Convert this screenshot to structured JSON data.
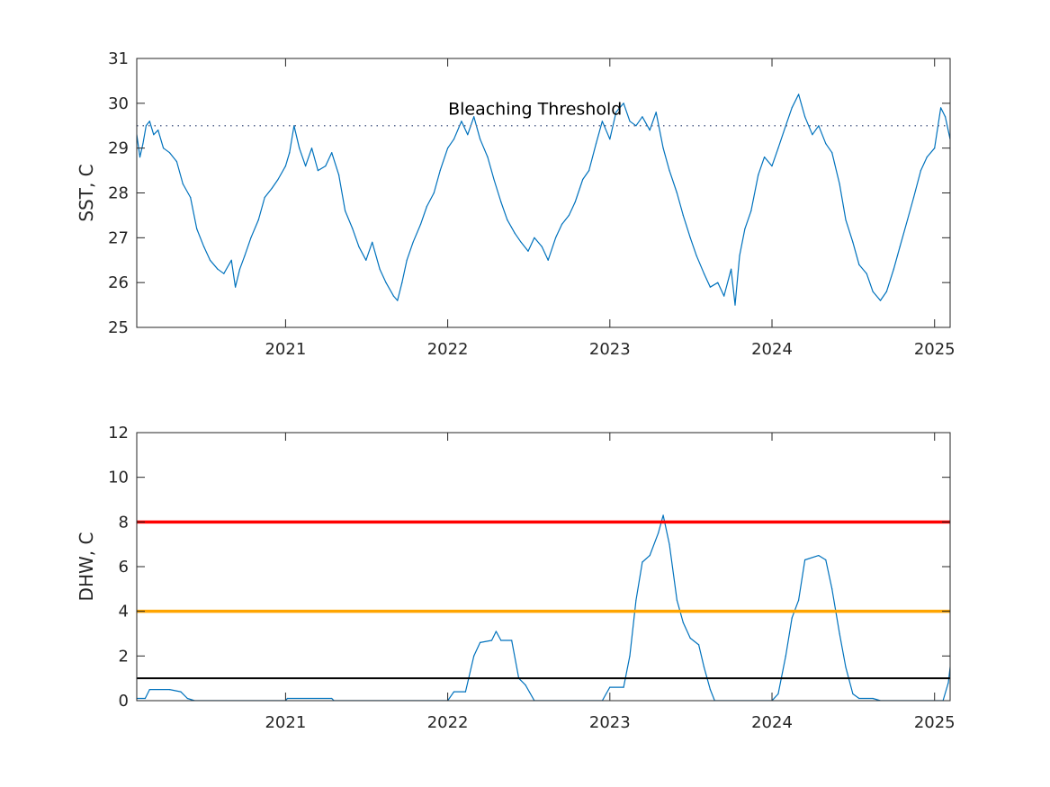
{
  "chart_data": [
    {
      "type": "line",
      "title": "",
      "xlabel": "",
      "ylabel": "SST, C",
      "xlim": [
        "2020-02-01",
        "2025-02-05"
      ],
      "ylim": [
        25,
        31
      ],
      "x_ticks": [
        "2021",
        "2022",
        "2023",
        "2024",
        "2025"
      ],
      "y_ticks": [
        "25",
        "26",
        "27",
        "28",
        "29",
        "30",
        "31"
      ],
      "grid": false,
      "series": [
        {
          "color": "#0072bd",
          "points": [
            [
              "2020-02-01",
              29.3
            ],
            [
              "2020-02-08",
              28.8
            ],
            [
              "2020-02-15",
              29.1
            ],
            [
              "2020-02-22",
              29.5
            ],
            [
              "2020-03-01",
              29.6
            ],
            [
              "2020-03-10",
              29.3
            ],
            [
              "2020-03-20",
              29.4
            ],
            [
              "2020-04-01",
              29.0
            ],
            [
              "2020-04-15",
              28.9
            ],
            [
              "2020-05-01",
              28.7
            ],
            [
              "2020-05-15",
              28.2
            ],
            [
              "2020-06-01",
              27.9
            ],
            [
              "2020-06-15",
              27.2
            ],
            [
              "2020-07-01",
              26.8
            ],
            [
              "2020-07-15",
              26.5
            ],
            [
              "2020-08-01",
              26.3
            ],
            [
              "2020-08-15",
              26.2
            ],
            [
              "2020-09-01",
              26.5
            ],
            [
              "2020-09-10",
              25.9
            ],
            [
              "2020-09-20",
              26.3
            ],
            [
              "2020-10-01",
              26.6
            ],
            [
              "2020-10-15",
              27.0
            ],
            [
              "2020-11-01",
              27.4
            ],
            [
              "2020-11-15",
              27.9
            ],
            [
              "2020-12-01",
              28.1
            ],
            [
              "2020-12-15",
              28.3
            ],
            [
              "2021-01-01",
              28.6
            ],
            [
              "2021-01-10",
              28.9
            ],
            [
              "2021-01-20",
              29.5
            ],
            [
              "2021-02-01",
              29.0
            ],
            [
              "2021-02-15",
              28.6
            ],
            [
              "2021-03-01",
              29.0
            ],
            [
              "2021-03-15",
              28.5
            ],
            [
              "2021-04-01",
              28.6
            ],
            [
              "2021-04-15",
              28.9
            ],
            [
              "2021-05-01",
              28.4
            ],
            [
              "2021-05-15",
              27.6
            ],
            [
              "2021-06-01",
              27.2
            ],
            [
              "2021-06-15",
              26.8
            ],
            [
              "2021-07-01",
              26.5
            ],
            [
              "2021-07-15",
              26.9
            ],
            [
              "2021-08-01",
              26.3
            ],
            [
              "2021-08-15",
              26.0
            ],
            [
              "2021-09-01",
              25.7
            ],
            [
              "2021-09-10",
              25.6
            ],
            [
              "2021-09-20",
              26.0
            ],
            [
              "2021-10-01",
              26.5
            ],
            [
              "2021-10-15",
              26.9
            ],
            [
              "2021-11-01",
              27.3
            ],
            [
              "2021-11-15",
              27.7
            ],
            [
              "2021-12-01",
              28.0
            ],
            [
              "2021-12-15",
              28.5
            ],
            [
              "2022-01-01",
              29.0
            ],
            [
              "2022-01-15",
              29.2
            ],
            [
              "2022-02-01",
              29.6
            ],
            [
              "2022-02-15",
              29.3
            ],
            [
              "2022-03-01",
              29.7
            ],
            [
              "2022-03-15",
              29.2
            ],
            [
              "2022-04-01",
              28.8
            ],
            [
              "2022-04-15",
              28.3
            ],
            [
              "2022-05-01",
              27.8
            ],
            [
              "2022-05-15",
              27.4
            ],
            [
              "2022-06-01",
              27.1
            ],
            [
              "2022-06-15",
              26.9
            ],
            [
              "2022-07-01",
              26.7
            ],
            [
              "2022-07-15",
              27.0
            ],
            [
              "2022-08-01",
              26.8
            ],
            [
              "2022-08-15",
              26.5
            ],
            [
              "2022-09-01",
              27.0
            ],
            [
              "2022-09-15",
              27.3
            ],
            [
              "2022-10-01",
              27.5
            ],
            [
              "2022-10-15",
              27.8
            ],
            [
              "2022-11-01",
              28.3
            ],
            [
              "2022-11-15",
              28.5
            ],
            [
              "2022-12-01",
              29.1
            ],
            [
              "2022-12-15",
              29.6
            ],
            [
              "2023-01-01",
              29.2
            ],
            [
              "2023-01-15",
              29.8
            ],
            [
              "2023-02-01",
              30.0
            ],
            [
              "2023-02-15",
              29.6
            ],
            [
              "2023-03-01",
              29.5
            ],
            [
              "2023-03-15",
              29.7
            ],
            [
              "2023-04-01",
              29.4
            ],
            [
              "2023-04-15",
              29.8
            ],
            [
              "2023-05-01",
              29.0
            ],
            [
              "2023-05-15",
              28.5
            ],
            [
              "2023-06-01",
              28.0
            ],
            [
              "2023-06-15",
              27.5
            ],
            [
              "2023-07-01",
              27.0
            ],
            [
              "2023-07-15",
              26.6
            ],
            [
              "2023-08-01",
              26.2
            ],
            [
              "2023-08-15",
              25.9
            ],
            [
              "2023-09-01",
              26.0
            ],
            [
              "2023-09-15",
              25.7
            ],
            [
              "2023-10-01",
              26.3
            ],
            [
              "2023-10-10",
              25.5
            ],
            [
              "2023-10-20",
              26.6
            ],
            [
              "2023-11-01",
              27.2
            ],
            [
              "2023-11-15",
              27.6
            ],
            [
              "2023-12-01",
              28.4
            ],
            [
              "2023-12-15",
              28.8
            ],
            [
              "2024-01-01",
              28.6
            ],
            [
              "2024-01-15",
              29.0
            ],
            [
              "2024-02-01",
              29.5
            ],
            [
              "2024-02-15",
              29.9
            ],
            [
              "2024-03-01",
              30.2
            ],
            [
              "2024-03-15",
              29.7
            ],
            [
              "2024-04-01",
              29.3
            ],
            [
              "2024-04-15",
              29.5
            ],
            [
              "2024-05-01",
              29.1
            ],
            [
              "2024-05-15",
              28.9
            ],
            [
              "2024-06-01",
              28.2
            ],
            [
              "2024-06-15",
              27.4
            ],
            [
              "2024-07-01",
              26.9
            ],
            [
              "2024-07-15",
              26.4
            ],
            [
              "2024-08-01",
              26.2
            ],
            [
              "2024-08-15",
              25.8
            ],
            [
              "2024-09-01",
              25.6
            ],
            [
              "2024-09-15",
              25.8
            ],
            [
              "2024-10-01",
              26.3
            ],
            [
              "2024-10-15",
              26.8
            ],
            [
              "2024-11-01",
              27.4
            ],
            [
              "2024-11-15",
              27.9
            ],
            [
              "2024-12-01",
              28.5
            ],
            [
              "2024-12-15",
              28.8
            ],
            [
              "2025-01-01",
              29.0
            ],
            [
              "2025-01-15",
              29.9
            ],
            [
              "2025-01-25",
              29.7
            ],
            [
              "2025-02-05",
              29.2
            ]
          ]
        }
      ],
      "reference_lines": [
        {
          "y": 29.5,
          "style": "dotted",
          "color": "#5a6a90"
        }
      ],
      "annotations": [
        {
          "text": "Bleaching Threshold",
          "x": "2022-01-02",
          "y": 29.75
        }
      ]
    },
    {
      "type": "area",
      "title": "",
      "xlabel": "",
      "ylabel": "DHW, C",
      "xlim": [
        "2020-02-01",
        "2025-02-05"
      ],
      "ylim": [
        0,
        12
      ],
      "x_ticks": [
        "2021",
        "2022",
        "2023",
        "2024",
        "2025"
      ],
      "y_ticks": [
        "0",
        "2",
        "4",
        "6",
        "8",
        "10",
        "12"
      ],
      "grid": false,
      "series": [
        {
          "color": "#0072bd",
          "points": [
            [
              "2020-02-01",
              0.1
            ],
            [
              "2020-02-20",
              0.1
            ],
            [
              "2020-03-01",
              0.5
            ],
            [
              "2020-04-15",
              0.5
            ],
            [
              "2020-05-10",
              0.4
            ],
            [
              "2020-05-25",
              0.1
            ],
            [
              "2020-06-10",
              0.0
            ],
            [
              "2021-01-01",
              0.0
            ],
            [
              "2021-01-05",
              0.1
            ],
            [
              "2021-04-15",
              0.1
            ],
            [
              "2021-04-20",
              0.0
            ],
            [
              "2022-01-01",
              0.0
            ],
            [
              "2022-01-15",
              0.4
            ],
            [
              "2022-02-10",
              0.4
            ],
            [
              "2022-03-01",
              2.0
            ],
            [
              "2022-03-15",
              2.6
            ],
            [
              "2022-04-10",
              2.7
            ],
            [
              "2022-04-20",
              3.1
            ],
            [
              "2022-05-01",
              2.7
            ],
            [
              "2022-05-25",
              2.7
            ],
            [
              "2022-06-10",
              1.0
            ],
            [
              "2022-06-25",
              0.7
            ],
            [
              "2022-07-15",
              0.0
            ],
            [
              "2022-12-15",
              0.0
            ],
            [
              "2023-01-01",
              0.6
            ],
            [
              "2023-02-01",
              0.6
            ],
            [
              "2023-02-15",
              2.0
            ],
            [
              "2023-03-01",
              4.5
            ],
            [
              "2023-03-15",
              6.2
            ],
            [
              "2023-04-01",
              6.5
            ],
            [
              "2023-04-20",
              7.5
            ],
            [
              "2023-05-01",
              8.3
            ],
            [
              "2023-05-15",
              7.0
            ],
            [
              "2023-06-01",
              4.5
            ],
            [
              "2023-06-15",
              3.5
            ],
            [
              "2023-07-01",
              2.8
            ],
            [
              "2023-07-20",
              2.5
            ],
            [
              "2023-08-01",
              1.5
            ],
            [
              "2023-08-15",
              0.5
            ],
            [
              "2023-08-25",
              0.0
            ],
            [
              "2024-01-01",
              0.0
            ],
            [
              "2024-01-15",
              0.3
            ],
            [
              "2024-02-01",
              2.0
            ],
            [
              "2024-02-15",
              3.7
            ],
            [
              "2024-03-01",
              4.5
            ],
            [
              "2024-03-15",
              6.3
            ],
            [
              "2024-04-15",
              6.5
            ],
            [
              "2024-05-01",
              6.3
            ],
            [
              "2024-05-15",
              5.0
            ],
            [
              "2024-06-01",
              3.0
            ],
            [
              "2024-06-15",
              1.5
            ],
            [
              "2024-07-01",
              0.3
            ],
            [
              "2024-07-15",
              0.1
            ],
            [
              "2024-08-15",
              0.1
            ],
            [
              "2024-09-01",
              0.0
            ],
            [
              "2025-01-20",
              0.0
            ],
            [
              "2025-02-01",
              0.8
            ],
            [
              "2025-02-05",
              1.5
            ]
          ]
        }
      ],
      "reference_lines": [
        {
          "y": 8,
          "style": "solid",
          "color": "#ff0000"
        },
        {
          "y": 4,
          "style": "solid",
          "color": "#ffa500"
        },
        {
          "y": 1,
          "style": "solid",
          "color": "#000000"
        }
      ],
      "annotations": []
    }
  ]
}
